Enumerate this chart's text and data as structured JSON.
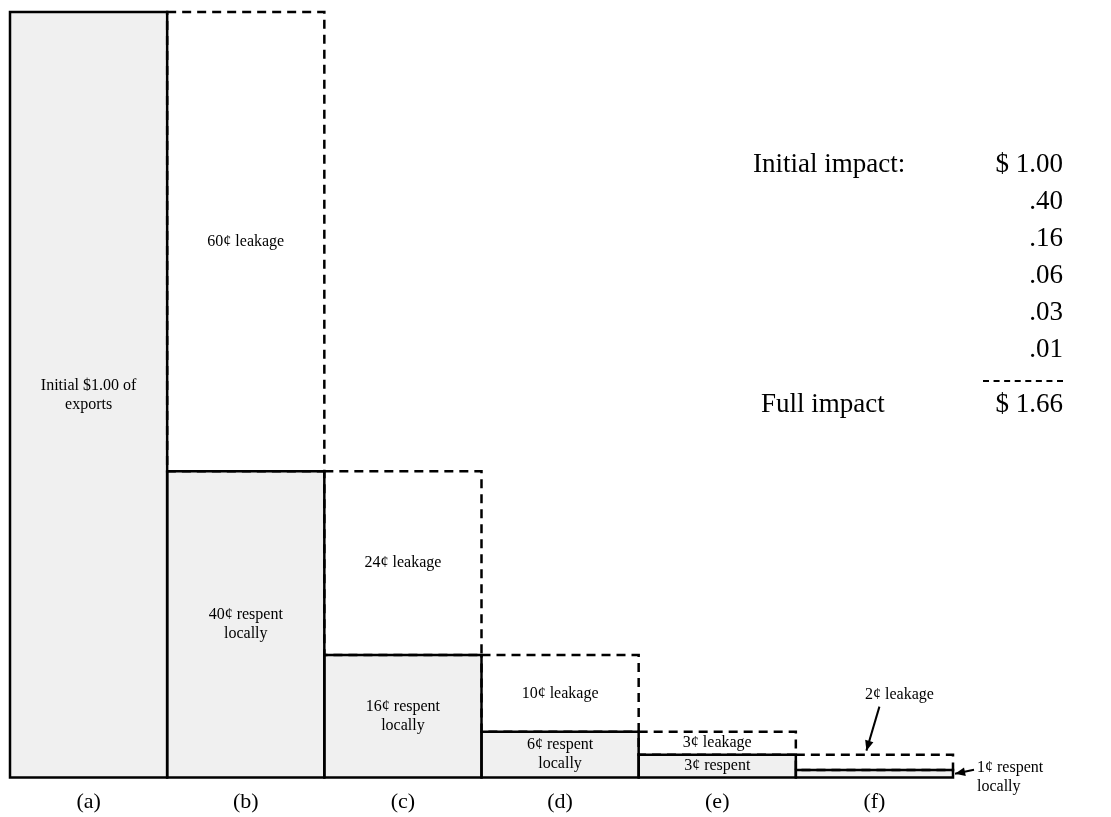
{
  "chart_data": {
    "type": "bar",
    "stacked": true,
    "categories": [
      "(a)",
      "(b)",
      "(c)",
      "(d)",
      "(e)",
      "(f)"
    ],
    "series": [
      {
        "color": "#f0f0f0",
        "line_style": "solid",
        "values": [
          100,
          40,
          16,
          6,
          3,
          1
        ],
        "value_labels": [
          "Initial $1.00 of exports",
          "40¢ respent locally",
          "16¢ respent locally",
          "6¢ respent locally",
          "3¢ respent",
          "1¢ respent locally"
        ]
      },
      {
        "color": "#ffffff",
        "line_style": "dashed",
        "values": [
          null,
          60,
          24,
          10,
          3,
          2
        ],
        "value_labels": [
          null,
          "60¢ leakage",
          "24¢ leakage",
          "10¢ leakage",
          "3¢ leakage",
          "2¢ leakage"
        ]
      }
    ],
    "annotations": [
      "Initial impact:",
      "$ 1.00",
      ".40",
      ".16",
      ".06",
      ".03",
      ".01",
      "Full impact",
      "$ 1.66"
    ],
    "grid": false,
    "legend": false
  }
}
